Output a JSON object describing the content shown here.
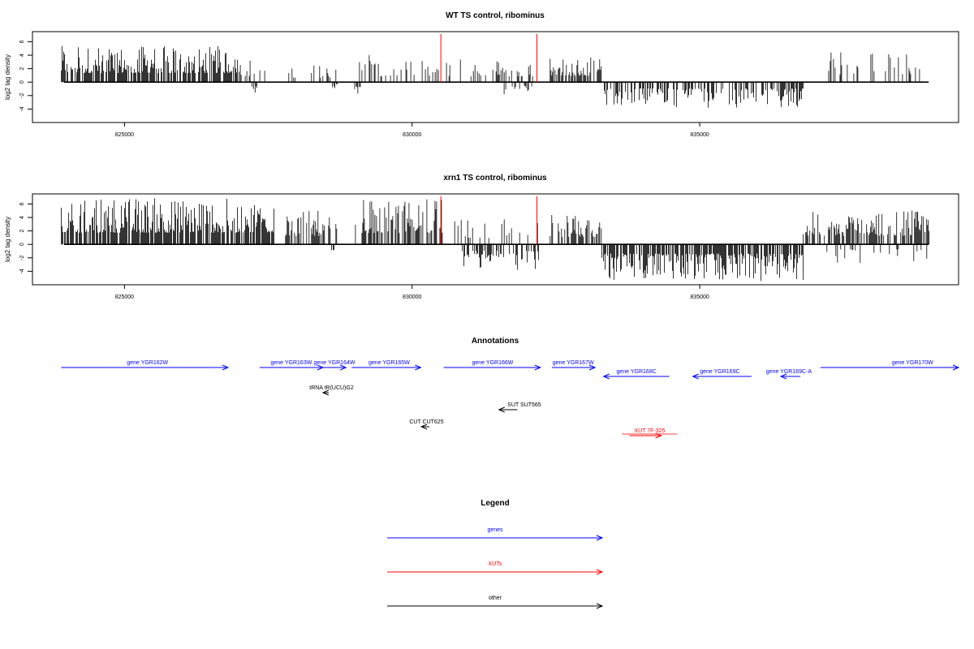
{
  "chart_data": [
    {
      "type": "bar",
      "title": "WT TS control, ribominus",
      "ylabel": "log2 tag density",
      "xlim": [
        823400,
        839500
      ],
      "ylim": [
        -6,
        7.5
      ],
      "yticks": [
        -4,
        -2,
        0,
        2,
        4,
        6
      ],
      "xticks": [
        825000,
        830000,
        835000
      ],
      "grid": false,
      "marker_lines": [
        830500,
        832170
      ],
      "positive_regions": [
        {
          "range": [
            823900,
            827000
          ],
          "max": 5.4,
          "density": 0.75
        },
        {
          "range": [
            827000,
            827600
          ],
          "max": 3.6,
          "density": 0.3
        },
        {
          "range": [
            827800,
            828700
          ],
          "max": 2.6,
          "density": 0.2
        },
        {
          "range": [
            829000,
            829300
          ],
          "max": 5.4,
          "density": 0.22
        },
        {
          "range": [
            829300,
            830600
          ],
          "max": 3.2,
          "density": 0.3
        },
        {
          "range": [
            830500,
            832200
          ],
          "max": 3.5,
          "density": 0.18
        },
        {
          "range": [
            832400,
            833300
          ],
          "max": 3.7,
          "density": 0.7
        },
        {
          "range": [
            837100,
            838950
          ],
          "max": 4.6,
          "density": 0.22
        }
      ],
      "negative_regions": [
        {
          "range": [
            827200,
            827300
          ],
          "min": -2.2,
          "density": 0.6
        },
        {
          "range": [
            828600,
            828700
          ],
          "min": -1.2,
          "density": 0.6
        },
        {
          "range": [
            829000,
            829100
          ],
          "min": -1.8,
          "density": 0.6
        },
        {
          "range": [
            831600,
            832100
          ],
          "min": -2.2,
          "density": 0.2
        },
        {
          "range": [
            833300,
            836800
          ],
          "min": -3.8,
          "density": 0.45
        }
      ]
    },
    {
      "type": "bar",
      "title": "xrn1 TS control, ribominus",
      "ylabel": "log2 tag density",
      "xlim": [
        823400,
        839500
      ],
      "ylim": [
        -6,
        7.5
      ],
      "yticks": [
        -4,
        -2,
        0,
        2,
        4,
        6
      ],
      "xticks": [
        825000,
        830000,
        835000
      ],
      "grid": false,
      "marker_lines": [
        830500,
        832170
      ],
      "positive_regions": [
        {
          "range": [
            823900,
            827600
          ],
          "max": 7.0,
          "density": 0.8
        },
        {
          "range": [
            827800,
            828700
          ],
          "max": 5.0,
          "density": 0.55
        },
        {
          "range": [
            829000,
            830600
          ],
          "max": 6.8,
          "density": 0.6
        },
        {
          "range": [
            830500,
            832200
          ],
          "max": 3.8,
          "density": 0.2
        },
        {
          "range": [
            832400,
            833300
          ],
          "max": 4.4,
          "density": 0.65
        },
        {
          "range": [
            836800,
            839000
          ],
          "max": 5.1,
          "density": 0.7
        }
      ],
      "negative_regions": [
        {
          "range": [
            828600,
            828700
          ],
          "min": -1.5,
          "density": 0.6
        },
        {
          "range": [
            830800,
            832200
          ],
          "min": -3.8,
          "density": 0.45
        },
        {
          "range": [
            833300,
            836800
          ],
          "min": -5.5,
          "density": 0.75
        },
        {
          "range": [
            837000,
            839000
          ],
          "min": -2.8,
          "density": 0.15
        }
      ]
    }
  ],
  "annotations": {
    "title": "Annotations",
    "features": [
      {
        "label": "gene YGR162W",
        "kind": "gene",
        "strand": "+",
        "start": 823900,
        "end": 826800,
        "row": 0,
        "label_pos": 825400
      },
      {
        "label": "gene YGR163W",
        "kind": "gene",
        "strand": "+",
        "start": 827350,
        "end": 828450,
        "row": 0,
        "label_pos": 827900
      },
      {
        "label": "gene YGR164W",
        "kind": "gene",
        "strand": "+",
        "start": 828350,
        "end": 828850,
        "row": 0,
        "label_pos": 828650
      },
      {
        "label": "gene YGR165W",
        "kind": "gene",
        "strand": "+",
        "start": 828950,
        "end": 830150,
        "row": 0,
        "label_pos": 829600
      },
      {
        "label": "gene YGR166W",
        "kind": "gene",
        "strand": "+",
        "start": 830550,
        "end": 832230,
        "row": 0,
        "label_pos": 831400
      },
      {
        "label": "gene YGR167W",
        "kind": "gene",
        "strand": "+",
        "start": 832430,
        "end": 833180,
        "row": 0,
        "label_pos": 832800
      },
      {
        "label": "gene YGR168C",
        "kind": "gene",
        "strand": "-",
        "start": 833330,
        "end": 834470,
        "row": 1,
        "label_pos": 833900
      },
      {
        "label": "gene YGR169C",
        "kind": "gene",
        "strand": "-",
        "start": 834880,
        "end": 835900,
        "row": 1,
        "label_pos": 835350
      },
      {
        "label": "gene YGR169C-A",
        "kind": "gene",
        "strand": "-",
        "start": 836410,
        "end": 836750,
        "row": 1,
        "label_pos": 836550
      },
      {
        "label": "gene YGR170W",
        "kind": "gene",
        "strand": "+",
        "start": 837100,
        "end": 839500,
        "row": 0,
        "label_pos": 838700
      },
      {
        "label": "tRNA tR(UCU)G2",
        "kind": "other",
        "strand": "-",
        "start": 828450,
        "end": 828550,
        "row": 2,
        "label_pos": 828600
      },
      {
        "label": "SUT SUT565",
        "kind": "other",
        "strand": "-",
        "start": 831510,
        "end": 831830,
        "row": 3,
        "label_pos": 831950
      },
      {
        "label": "CUT CUT625",
        "kind": "other",
        "strand": "-",
        "start": 830160,
        "end": 830300,
        "row": 4,
        "label_pos": 830250
      },
      {
        "label": "XUT 7F-325",
        "kind": "xut",
        "strand": "+",
        "start": 833780,
        "end": 834330,
        "row": 5,
        "label_pos": 834130
      }
    ]
  },
  "legend": {
    "title": "Legend",
    "items": [
      {
        "label": "genes",
        "color": "#0000ff"
      },
      {
        "label": "XUTs",
        "color": "#ff0000"
      },
      {
        "label": "other",
        "color": "#000000"
      }
    ]
  },
  "colors": {
    "gene": "#0000ff",
    "xut": "#ff0000",
    "other": "#000000",
    "marker": "#ff0000"
  }
}
